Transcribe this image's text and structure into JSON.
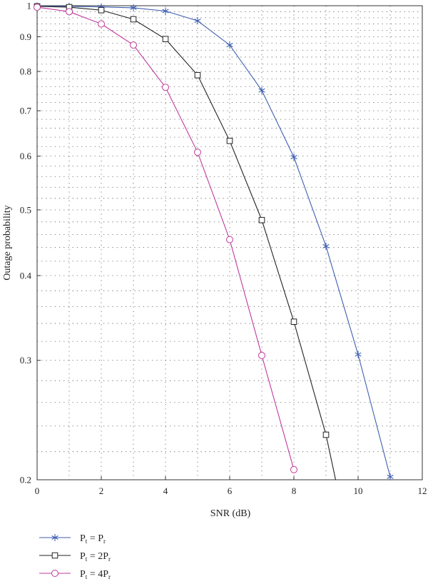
{
  "chart_data": {
    "type": "line",
    "title": "",
    "xlabel": "SNR (dB)",
    "ylabel": "Outage probability",
    "xlim": [
      0,
      12
    ],
    "ylim": [
      0.2,
      1
    ],
    "yscale": "log",
    "grid": true,
    "legend_position": "bottom-left",
    "x_ticks": [
      0,
      2,
      4,
      6,
      8,
      10,
      12
    ],
    "y_ticks": [
      {
        "value": 0.2,
        "label": "0.2"
      },
      {
        "value": 0.3,
        "label": "0.3"
      },
      {
        "value": 0.4,
        "label": "0.4"
      },
      {
        "value": 0.5,
        "label": "0.5"
      },
      {
        "value": 0.6,
        "label": "0.6"
      },
      {
        "value": 0.7,
        "label": "0.7"
      },
      {
        "value": 0.8,
        "label": "0.8"
      },
      {
        "value": 0.9,
        "label": "0.9"
      },
      {
        "value": 1,
        "label": "1"
      }
    ],
    "series": [
      {
        "legend": {
          "main": "P",
          "sub1": "t",
          "mid": " = P",
          "sub2": "r"
        },
        "color": "#3f5fb0",
        "marker": "asterisk",
        "x": [
          0,
          1,
          2,
          3,
          4,
          5,
          6,
          7,
          8,
          9,
          10,
          11
        ],
        "y": [
          0.999,
          0.998,
          0.996,
          0.993,
          0.982,
          0.95,
          0.875,
          0.75,
          0.598,
          0.442,
          0.306,
          0.202
        ],
        "extend_to": null
      },
      {
        "legend": {
          "main": "P",
          "sub1": "t",
          "mid": " = 2P",
          "sub2": "r"
        },
        "color": "#222222",
        "marker": "square",
        "x": [
          0,
          1,
          2,
          3,
          4,
          5,
          6,
          7,
          8,
          9
        ],
        "y": [
          0.998,
          0.995,
          0.985,
          0.955,
          0.893,
          0.79,
          0.632,
          0.483,
          0.342,
          0.233
        ],
        "extend_to": {
          "x": 9.3,
          "y": 0.2
        }
      },
      {
        "legend": {
          "main": "P",
          "sub1": "t",
          "mid": " = 4P",
          "sub2": "r"
        },
        "color": "#c0399c",
        "marker": "circle",
        "x": [
          0,
          1,
          2,
          3,
          4,
          5,
          6,
          7,
          8
        ],
        "y": [
          0.995,
          0.98,
          0.94,
          0.875,
          0.758,
          0.608,
          0.452,
          0.305,
          0.207
        ],
        "extend_to": null
      }
    ]
  }
}
